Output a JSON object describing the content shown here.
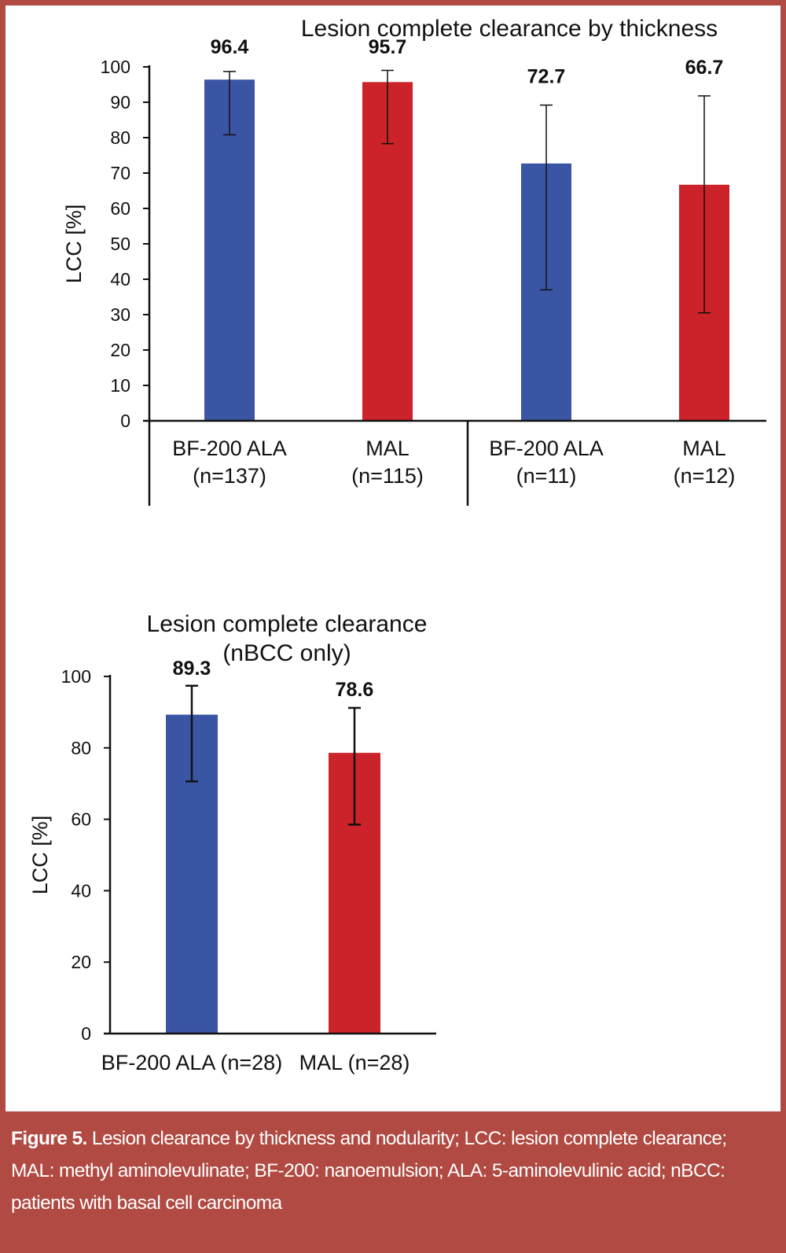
{
  "chart_data": [
    {
      "type": "bar",
      "title": "Lesion complete clearance by thickness",
      "ylabel": "LCC [%]",
      "xlabel": "",
      "ylim": [
        0,
        100
      ],
      "yticks": [
        0,
        10,
        20,
        30,
        40,
        50,
        60,
        70,
        80,
        90,
        100
      ],
      "grid": false,
      "legend": "none",
      "categories": [
        [
          "BF-200 ALA",
          "(n=137)"
        ],
        [
          "MAL",
          "(n=115)"
        ],
        [
          "BF-200 ALA",
          "(n=11)"
        ],
        [
          "MAL",
          "(n=12)"
        ]
      ],
      "values": [
        96.4,
        95.7,
        72.7,
        66.7
      ],
      "data_labels": [
        "96.4",
        "95.7",
        "72.7",
        "66.7"
      ],
      "error_low": [
        80.8,
        78.3,
        37.0,
        30.5
      ],
      "error_high": [
        98.7,
        99.0,
        89.2,
        91.8
      ],
      "colors": [
        "#3a55a4",
        "#cc2229",
        "#3a55a4",
        "#cc2229"
      ]
    },
    {
      "type": "bar",
      "title": "Lesion complete clearance",
      "subtitle": "(nBCC only)",
      "ylabel": "LCC [%]",
      "xlabel": "",
      "ylim": [
        0,
        100
      ],
      "yticks": [
        0,
        20,
        40,
        60,
        80,
        100
      ],
      "grid": false,
      "legend": "none",
      "categories": [
        "BF-200 ALA (n=28)",
        "MAL (n=28)"
      ],
      "values": [
        89.3,
        78.6
      ],
      "data_labels": [
        "89.3",
        "78.6"
      ],
      "error_low": [
        70.6,
        58.5
      ],
      "error_high": [
        97.4,
        91.2
      ],
      "colors": [
        "#3a55a4",
        "#cc2229"
      ]
    }
  ],
  "caption": {
    "label": "Figure 5.",
    "text": " Lesion clearance by thickness and nodularity; LCC: lesion complete clearance; MAL: methyl aminolevulinate; BF-200: nanoemulsion; ALA: 5-aminolevulinic acid; nBCC: patients with basal cell carcinoma"
  }
}
